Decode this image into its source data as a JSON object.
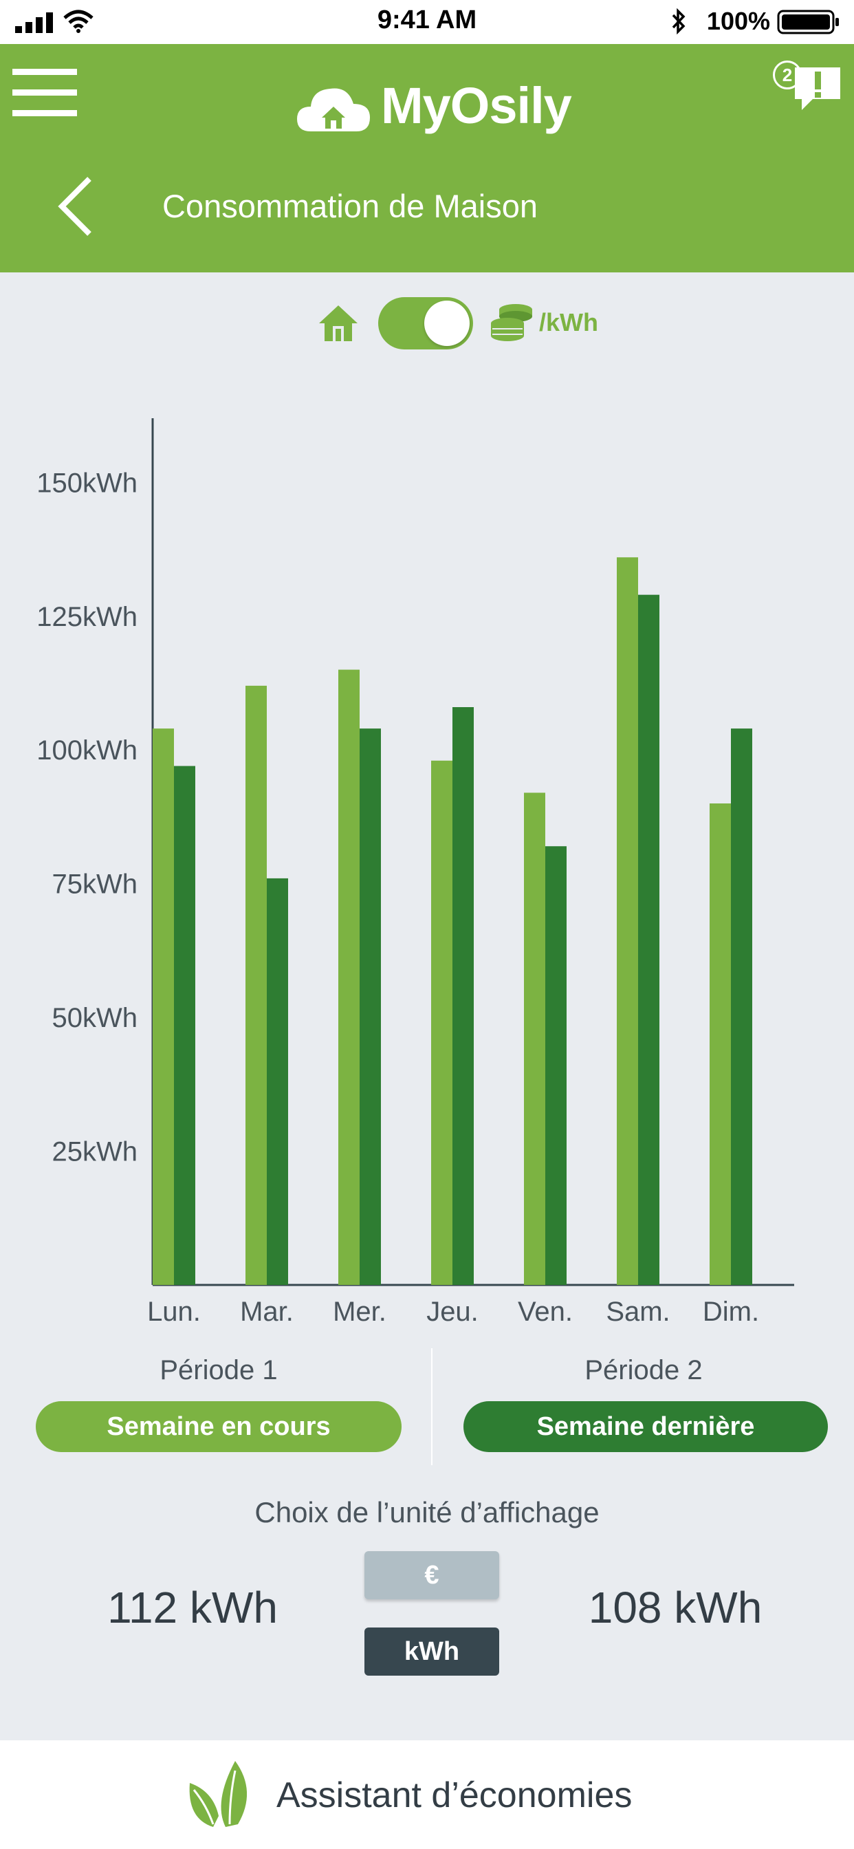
{
  "status_bar": {
    "time": "9:41 AM",
    "battery": "100%"
  },
  "app": {
    "name": "MyOsily",
    "notification_count": "2"
  },
  "header": {
    "title": "Consommation de Maison"
  },
  "toggle": {
    "unit_label": "/kWh",
    "state": "on"
  },
  "colors": {
    "primary_green": "#7cb342",
    "dark_green": "#2e7d32",
    "background": "#e9ecf0",
    "dark_button": "#37474f",
    "grey_button": "#b0bec5"
  },
  "chart_data": {
    "type": "bar",
    "categories": [
      "Lun.",
      "Mar.",
      "Mer.",
      "Jeu.",
      "Ven.",
      "Sam.",
      "Dim."
    ],
    "series": [
      {
        "name": "Période 1",
        "values": [
          104,
          112,
          115,
          98,
          92,
          136,
          90
        ]
      },
      {
        "name": "Période 2",
        "values": [
          97,
          76,
          104,
          108,
          82,
          129,
          104
        ]
      }
    ],
    "yticks": [
      "25kWh",
      "50kWh",
      "75kWh",
      "100kWh",
      "125kWh",
      "150kWh"
    ],
    "ytick_values": [
      25,
      50,
      75,
      100,
      125,
      150
    ],
    "ylim": [
      0,
      162
    ],
    "grid": false,
    "title": "",
    "xlabel": "",
    "ylabel": ""
  },
  "periods": {
    "p1": {
      "label": "Période 1",
      "button": "Semaine en cours"
    },
    "p2": {
      "label": "Période 2",
      "button": "Semaine dernière"
    }
  },
  "units": {
    "caption": "Choix de l’unité d’affichage",
    "euro": "€",
    "kwh": "kWh",
    "selected": "kWh"
  },
  "totals": {
    "p1": "112 kWh",
    "p2": "108 kWh"
  },
  "footer": {
    "label": "Assistant d’économies"
  }
}
